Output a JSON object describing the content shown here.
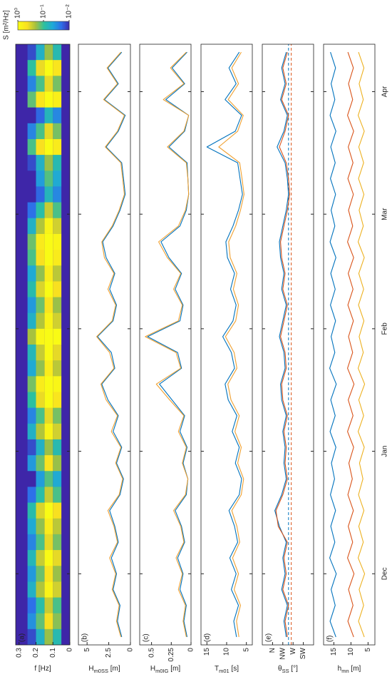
{
  "chart_data": [
    {
      "type": "heatmap",
      "panel_label": "(a)",
      "ylabel": [
        "f [Hz]"
      ],
      "x_bins": [
        -18,
        -14,
        -10,
        -6,
        -2,
        2,
        6,
        10,
        14,
        18,
        22,
        26,
        30,
        34,
        38,
        42,
        46,
        50,
        54,
        58,
        62,
        66,
        70,
        74,
        78,
        82,
        86,
        90,
        94,
        98,
        102,
        106,
        110,
        114,
        118,
        122,
        126,
        130,
        134
      ],
      "y_bins": [
        0.05,
        0.1,
        0.15,
        0.2,
        0.25
      ],
      "values": [
        [
          0.08,
          0.18,
          0.12,
          0.32,
          0.2,
          0.39,
          0.16,
          0.26,
          0.46,
          0.12,
          0.05,
          0.2,
          0.08,
          0.32,
          0.16,
          0.54,
          0.87,
          0.26,
          0.39,
          1.16,
          0.32,
          0.2,
          0.46,
          0.26,
          0.63,
          0.82,
          0.32,
          0.12,
          0.03,
          0.05,
          0.08,
          0.63,
          0.16,
          0.03,
          0.72,
          0.16,
          0.54,
          0.08
        ],
        [
          0.2,
          0.45,
          0.29,
          0.8,
          0.51,
          0.97,
          0.39,
          0.65,
          1.15,
          0.29,
          0.13,
          0.51,
          0.2,
          0.8,
          0.39,
          1.35,
          2.18,
          0.65,
          0.97,
          2.89,
          0.8,
          0.51,
          1.15,
          0.65,
          1.57,
          2.05,
          0.8,
          0.29,
          0.07,
          0.13,
          0.2,
          1.57,
          0.39,
          0.07,
          1.8,
          0.39,
          1.35,
          0.2
        ],
        [
          0.06,
          0.14,
          0.09,
          0.24,
          0.15,
          0.29,
          0.12,
          0.19,
          0.35,
          0.09,
          0.04,
          0.15,
          0.06,
          0.24,
          0.12,
          0.41,
          0.65,
          0.19,
          0.29,
          0.87,
          0.24,
          0.15,
          0.35,
          0.19,
          0.47,
          0.61,
          0.24,
          0.09,
          0.02,
          0.04,
          0.06,
          0.47,
          0.12,
          0.02,
          0.54,
          0.12,
          0.41,
          0.06
        ],
        [
          0.015,
          0.034,
          0.022,
          0.06,
          0.038,
          0.073,
          0.029,
          0.049,
          0.086,
          0.022,
          0.01,
          0.038,
          0.015,
          0.06,
          0.029,
          0.1,
          0.16,
          0.049,
          0.073,
          0.22,
          0.06,
          0.038,
          0.086,
          0.049,
          0.12,
          0.15,
          0.06,
          0.022,
          0.005,
          0.01,
          0.015,
          0.12,
          0.029,
          0.005,
          0.14,
          0.029,
          0.1,
          0.015
        ]
      ],
      "clim": [
        0.01,
        1
      ],
      "colormap": [
        "#3e26a8",
        "#2d6fe8",
        "#1fa8d8",
        "#2cc0a0",
        "#a5c040",
        "#f9e020",
        "#f9fb15"
      ],
      "colorbar": {
        "label": "S [m²/Hz]",
        "ticks": [
          {
            "value": 1,
            "label": "10⁰"
          },
          {
            "value": 0.1,
            "label": "10⁻¹"
          },
          {
            "value": 0.01,
            "label": "10⁻²"
          }
        ]
      },
      "xlim": [
        -18,
        134
      ],
      "ylim": [
        0,
        0.32
      ],
      "yticks": [
        0,
        0.1,
        0.2,
        0.3
      ]
    },
    {
      "type": "line",
      "panel_label": "(b)",
      "ylabel": [
        "H",
        "m0SS",
        " [m]"
      ],
      "x": [
        -16,
        -12,
        -8,
        -4,
        0,
        4,
        8,
        12,
        16,
        20,
        24,
        28,
        32,
        36,
        40,
        44,
        48,
        52,
        56,
        60,
        64,
        68,
        72,
        76,
        80,
        84,
        88,
        92,
        96,
        100,
        104,
        108,
        112,
        116,
        120,
        124,
        128,
        132
      ],
      "series": [
        {
          "color": "#0072BD",
          "values": [
            1.0,
            1.5,
            1.2,
            2.0,
            1.6,
            2.2,
            1.4,
            1.8,
            2.4,
            1.2,
            0.8,
            1.6,
            1.0,
            2.0,
            1.4,
            2.6,
            3.3,
            1.8,
            2.2,
            3.8,
            2.0,
            1.6,
            2.4,
            1.8,
            2.8,
            3.2,
            2.0,
            1.2,
            0.6,
            0.8,
            1.0,
            2.8,
            1.4,
            0.6,
            3.0,
            1.4,
            2.6,
            1.0
          ]
        },
        {
          "color": "#F0A030",
          "values": [
            1.1,
            1.6,
            1.3,
            2.1,
            1.7,
            2.4,
            1.5,
            1.9,
            2.6,
            1.3,
            0.9,
            1.7,
            1.1,
            2.2,
            1.5,
            2.8,
            3.4,
            1.9,
            2.4,
            3.9,
            2.1,
            1.7,
            2.6,
            1.9,
            3.0,
            3.3,
            2.1,
            1.3,
            0.7,
            0.9,
            1.1,
            2.9,
            1.5,
            0.7,
            3.1,
            1.5,
            2.7,
            1.1
          ]
        }
      ],
      "xlim": [
        -18,
        134
      ],
      "ylim": [
        0,
        6
      ],
      "yticks": [
        0,
        2.5,
        5
      ]
    },
    {
      "type": "line",
      "panel_label": "(c)",
      "ylabel": [
        "H",
        "m0IG",
        " [m]"
      ],
      "x": [
        -16,
        -12,
        -8,
        -4,
        0,
        4,
        8,
        12,
        16,
        20,
        24,
        28,
        32,
        36,
        40,
        44,
        48,
        52,
        56,
        60,
        64,
        68,
        72,
        76,
        80,
        84,
        88,
        92,
        96,
        100,
        104,
        108,
        112,
        116,
        120,
        124,
        128,
        132
      ],
      "series": [
        {
          "color": "#0072BD",
          "values": [
            0.05,
            0.09,
            0.06,
            0.14,
            0.1,
            0.17,
            0.08,
            0.12,
            0.2,
            0.06,
            0.04,
            0.1,
            0.05,
            0.14,
            0.08,
            0.24,
            0.4,
            0.12,
            0.17,
            0.55,
            0.14,
            0.1,
            0.2,
            0.12,
            0.28,
            0.38,
            0.14,
            0.06,
            0.03,
            0.04,
            0.05,
            0.28,
            0.08,
            0.03,
            0.32,
            0.08,
            0.24,
            0.05
          ]
        },
        {
          "color": "#F0A030",
          "values": [
            0.06,
            0.1,
            0.07,
            0.16,
            0.11,
            0.19,
            0.09,
            0.13,
            0.22,
            0.07,
            0.04,
            0.11,
            0.06,
            0.16,
            0.09,
            0.27,
            0.44,
            0.13,
            0.19,
            0.58,
            0.16,
            0.11,
            0.22,
            0.13,
            0.3,
            0.41,
            0.16,
            0.07,
            0.03,
            0.04,
            0.06,
            0.3,
            0.09,
            0.03,
            0.35,
            0.09,
            0.26,
            0.06
          ]
        }
      ],
      "xlim": [
        -18,
        134
      ],
      "ylim": [
        0,
        0.65
      ],
      "yticks": [
        0,
        0.25,
        0.5
      ]
    },
    {
      "type": "line",
      "panel_label": "(d)",
      "ylabel": [
        "T",
        "m01",
        " [s]"
      ],
      "x": [
        -16,
        -12,
        -8,
        -4,
        0,
        4,
        8,
        12,
        16,
        20,
        24,
        28,
        32,
        36,
        40,
        44,
        48,
        52,
        56,
        60,
        64,
        68,
        72,
        76,
        80,
        84,
        88,
        92,
        96,
        100,
        104,
        108,
        112,
        116,
        120,
        124,
        128,
        132
      ],
      "series": [
        {
          "color": "#0072BD",
          "values": [
            7.5,
            8.2,
            7.0,
            8.8,
            7.6,
            9.2,
            7.2,
            8.0,
            9.4,
            6.8,
            6.2,
            7.8,
            6.8,
            8.6,
            7.4,
            9.6,
            10.4,
            8.0,
            8.8,
            11.0,
            8.4,
            7.6,
            9.0,
            8.0,
            9.8,
            10.2,
            8.4,
            7.0,
            6.0,
            6.6,
            7.2,
            15.0,
            7.8,
            6.2,
            10.4,
            7.6,
            9.4,
            6.8
          ]
        },
        {
          "color": "#F0A030",
          "values": [
            6.9,
            7.5,
            6.5,
            8.1,
            7.0,
            8.5,
            6.7,
            7.4,
            8.7,
            6.3,
            5.7,
            7.2,
            6.3,
            7.9,
            6.8,
            8.9,
            9.7,
            7.4,
            8.1,
            10.3,
            7.7,
            7.0,
            8.3,
            7.4,
            9.1,
            9.5,
            7.7,
            6.5,
            5.6,
            6.1,
            6.7,
            12.0,
            7.2,
            5.8,
            9.6,
            7.0,
            8.7,
            6.3
          ]
        }
      ],
      "xlim": [
        -18,
        134
      ],
      "ylim": [
        3.5,
        16.5
      ],
      "yticks": [
        5,
        10,
        15
      ]
    },
    {
      "type": "line",
      "panel_label": "(e)",
      "ylabel": [
        "θ",
        "SS",
        " [°]"
      ],
      "x": [
        -16,
        -12,
        -8,
        -4,
        0,
        4,
        8,
        12,
        16,
        20,
        24,
        28,
        32,
        36,
        40,
        44,
        48,
        52,
        56,
        60,
        64,
        68,
        72,
        76,
        80,
        84,
        88,
        92,
        96,
        100,
        104,
        108,
        112,
        116,
        120,
        124,
        128,
        132
      ],
      "series": [
        {
          "color": "#0072BD",
          "values": [
            300,
            310,
            295,
            320,
            305,
            315,
            300,
            330,
            350,
            320,
            300,
            310,
            305,
            315,
            300,
            320,
            325,
            305,
            310,
            330,
            315,
            300,
            320,
            310,
            325,
            330,
            315,
            300,
            290,
            295,
            305,
            340,
            310,
            295,
            325,
            305,
            320,
            300
          ]
        },
        {
          "color": "#D95319",
          "values": [
            295,
            305,
            290,
            315,
            300,
            310,
            295,
            335,
            345,
            315,
            295,
            305,
            300,
            310,
            295,
            315,
            320,
            300,
            305,
            325,
            310,
            295,
            315,
            305,
            320,
            325,
            310,
            295,
            285,
            290,
            300,
            330,
            305,
            290,
            320,
            300,
            315,
            295
          ]
        }
      ],
      "hlines": [
        {
          "value": 290,
          "color": "#0072BD"
        },
        {
          "value": 278,
          "color": "#D95319"
        }
      ],
      "xlim": [
        -18,
        134
      ],
      "ylim": [
        180,
        405
      ],
      "yticks": [
        {
          "value": 360,
          "label": "N"
        },
        {
          "value": 315,
          "label": "NW"
        },
        {
          "value": 270,
          "label": "W"
        },
        {
          "value": 225,
          "label": "SW"
        }
      ]
    },
    {
      "type": "line",
      "panel_label": "(f)",
      "ylabel": [
        "h",
        "mn",
        " [m]"
      ],
      "x": [
        -16,
        -12,
        -8,
        -4,
        0,
        4,
        8,
        12,
        16,
        20,
        24,
        28,
        32,
        36,
        40,
        44,
        48,
        52,
        56,
        60,
        64,
        68,
        72,
        76,
        80,
        84,
        88,
        92,
        96,
        100,
        104,
        108,
        112,
        116,
        120,
        124,
        128,
        132
      ],
      "series": [
        {
          "color": "#0072BD",
          "values": [
            14.4,
            16.1,
            14.6,
            15.8,
            14.3,
            16.2,
            14.7,
            15.9,
            14.5,
            16.0,
            14.8,
            15.7,
            14.4,
            16.1,
            14.6,
            15.9,
            14.3,
            16.2,
            14.7,
            15.8,
            14.5,
            16.0,
            14.6,
            15.9,
            14.4,
            16.1,
            14.7,
            15.8,
            14.5,
            16.0,
            14.6,
            15.9,
            14.4,
            16.1,
            14.7,
            15.8,
            14.5,
            16.0
          ]
        },
        {
          "color": "#D95319",
          "values": [
            9.2,
            10.9,
            9.4,
            10.7,
            9.1,
            11.0,
            9.5,
            10.8,
            9.3,
            10.9,
            9.6,
            10.6,
            9.2,
            11.0,
            9.4,
            10.8,
            9.1,
            11.0,
            9.5,
            10.7,
            9.3,
            10.9,
            9.4,
            10.8,
            9.2,
            11.0,
            9.5,
            10.7,
            9.3,
            10.9,
            9.4,
            10.8,
            9.2,
            11.0,
            9.5,
            10.7,
            9.3,
            10.9
          ]
        },
        {
          "color": "#EDB120",
          "values": [
            6.1,
            7.8,
            6.3,
            7.6,
            6.0,
            7.9,
            6.4,
            7.7,
            6.2,
            7.8,
            6.5,
            7.5,
            6.1,
            7.9,
            6.3,
            7.7,
            6.0,
            7.9,
            6.4,
            7.6,
            6.2,
            7.8,
            6.3,
            7.7,
            6.1,
            7.9,
            6.4,
            7.6,
            6.2,
            7.8,
            6.3,
            7.7,
            6.1,
            7.9,
            6.4,
            7.6,
            6.2,
            7.8
          ]
        }
      ],
      "xlim": [
        -18,
        134
      ],
      "ylim": [
        3,
        18
      ],
      "yticks": [
        5,
        10,
        15
      ],
      "xticks": [
        {
          "value": 0,
          "label": "Dec"
        },
        {
          "value": 31,
          "label": "Jan"
        },
        {
          "value": 62,
          "label": "Feb"
        },
        {
          "value": 91,
          "label": "Mar"
        },
        {
          "value": 122,
          "label": "Apr"
        }
      ]
    }
  ]
}
